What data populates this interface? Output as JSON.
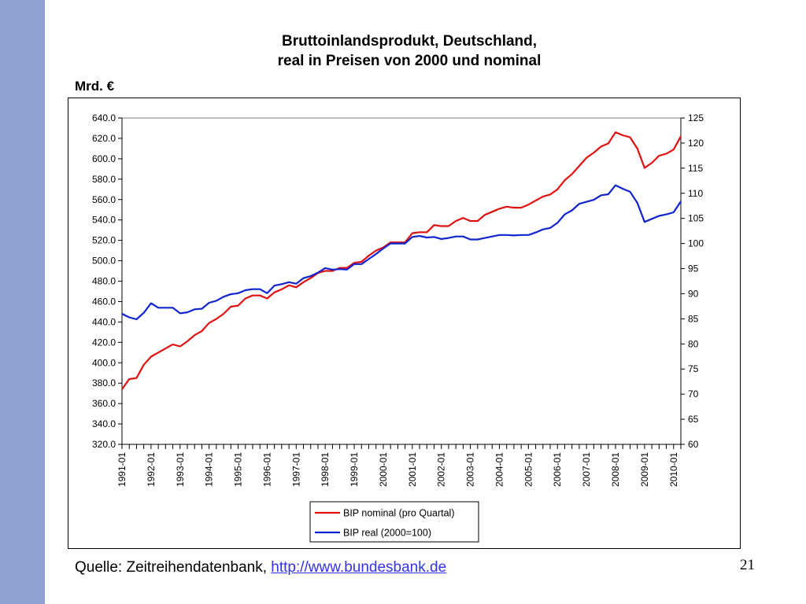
{
  "slide": {
    "title_line1": "Bruttoinlandsprodukt, Deutschland,",
    "title_line2": "real in Preisen von 2000 und nominal",
    "unit_label": "Mrd. €",
    "source_prefix": "Quelle: Zeitreihendatenbank, ",
    "source_link": "http://www.bundesbank.de",
    "page_number": "21",
    "accent_color": "#8fa0d2"
  },
  "chart_data": {
    "type": "line",
    "grid": false,
    "legend_position": "bottom-center",
    "x_tick_labels": [
      "1991-01",
      "1992-01",
      "1993-01",
      "1994-01",
      "1995-01",
      "1996-01",
      "1997-01",
      "1998-01",
      "1999-01",
      "2000-01",
      "2001-01",
      "2002-01",
      "2003-01",
      "2004-01",
      "2005-01",
      "2006-01",
      "2007-01",
      "2008-01",
      "2009-01",
      "2010-01"
    ],
    "y_left": {
      "range": [
        320,
        640
      ],
      "ticks": [
        "640.0",
        "620.0",
        "600.0",
        "580.0",
        "560.0",
        "540.0",
        "520.0",
        "500.0",
        "480.0",
        "460.0",
        "440.0",
        "420.0",
        "400.0",
        "380.0",
        "360.0",
        "340.0",
        "320.0"
      ]
    },
    "y_right": {
      "range": [
        60,
        125
      ],
      "ticks": [
        "125",
        "120",
        "115",
        "110",
        "105",
        "100",
        "95",
        "90",
        "85",
        "80",
        "75",
        "70",
        "65",
        "60"
      ]
    },
    "series": [
      {
        "name": "BIP nominal (pro Quartal)",
        "axis": "left",
        "color": "#e01010",
        "start": "1991-Q1",
        "values": [
          374,
          384,
          385,
          398,
          406,
          410,
          414,
          418,
          416,
          421,
          427,
          431,
          439,
          443,
          448,
          455,
          456,
          463,
          466,
          466,
          463,
          469,
          472,
          476,
          474,
          479,
          483,
          488,
          490,
          490,
          493,
          493,
          498,
          499,
          505,
          510,
          513,
          518,
          518,
          518,
          527,
          528,
          528,
          535,
          534,
          534,
          539,
          542,
          539,
          539,
          545,
          548,
          551,
          553,
          552,
          552,
          555,
          559,
          563,
          565,
          570,
          579,
          585,
          593,
          601,
          606,
          612,
          615,
          626,
          623,
          621,
          610,
          591,
          596,
          603,
          605,
          609,
          622
        ]
      },
      {
        "name": "BIP real (2000=100)",
        "axis": "right",
        "color": "#1024d0",
        "start": "1991-Q1",
        "values": [
          86.0,
          85.3,
          84.9,
          86.2,
          88.1,
          87.2,
          87.2,
          87.2,
          86.1,
          86.3,
          86.9,
          87.0,
          88.2,
          88.6,
          89.4,
          89.9,
          90.1,
          90.7,
          90.9,
          90.9,
          90.1,
          91.6,
          91.9,
          92.3,
          92.0,
          93.1,
          93.5,
          94.2,
          95.1,
          94.8,
          94.9,
          94.8,
          95.9,
          95.9,
          96.9,
          97.9,
          99.0,
          100.0,
          100.0,
          100.0,
          101.3,
          101.5,
          101.2,
          101.3,
          100.9,
          101.1,
          101.4,
          101.4,
          100.8,
          100.8,
          101.1,
          101.4,
          101.7,
          101.7,
          101.6,
          101.7,
          101.7,
          102.2,
          102.8,
          103.1,
          104.1,
          105.8,
          106.6,
          107.9,
          108.3,
          108.7,
          109.6,
          109.8,
          111.6,
          110.9,
          110.3,
          108.1,
          104.3,
          104.9,
          105.5,
          105.8,
          106.2,
          108.4
        ]
      }
    ]
  }
}
